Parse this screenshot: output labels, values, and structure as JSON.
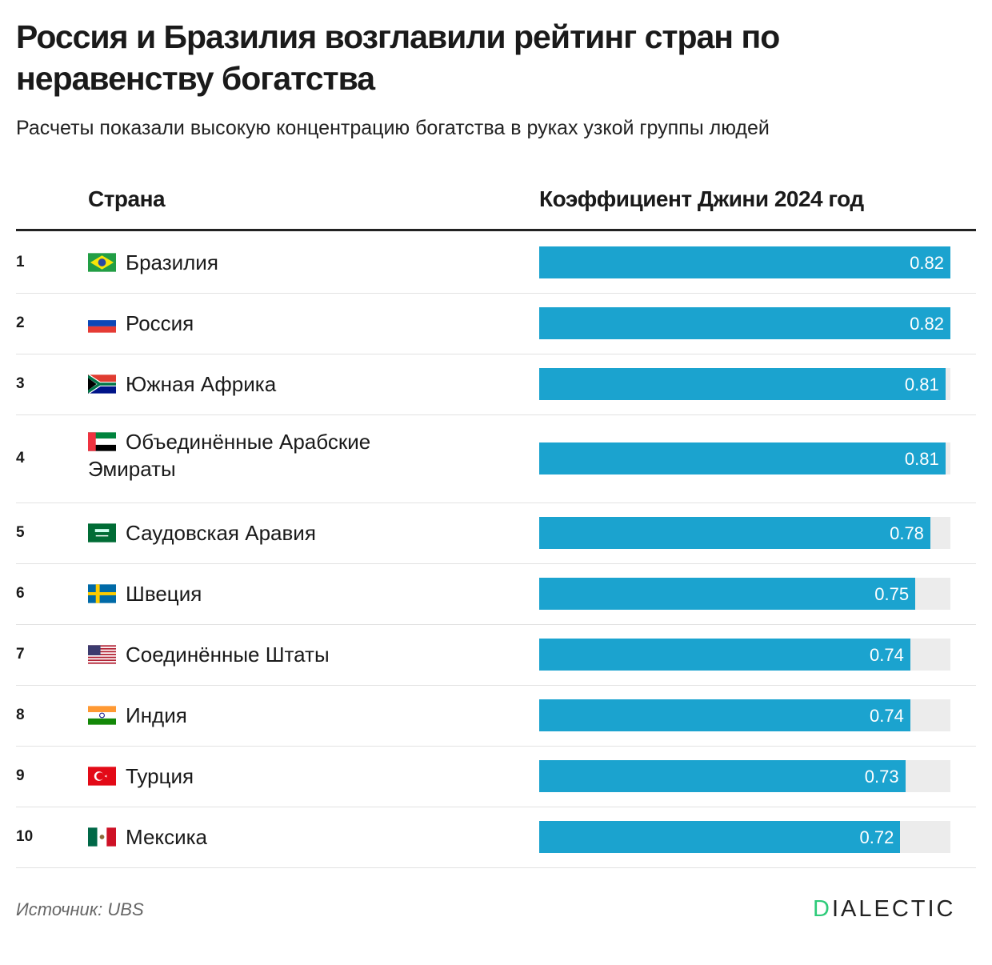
{
  "title": "Россия и Бразилия возглавили рейтинг стран по неравенству богатства",
  "subtitle": "Расчеты показали высокую концентрацию богатства в руках узкой группы людей",
  "source": "Источник: UBS",
  "logo": {
    "first": "D",
    "rest": "IALECTIC"
  },
  "colors": {
    "bar": "#1ba3cf",
    "track": "#ececec",
    "logo_accent": "#2ecb7a"
  },
  "chart_data": {
    "type": "table",
    "columns": [
      "Страна",
      "Коэффициент Джини 2024 год"
    ],
    "xlim": [
      0,
      0.82
    ],
    "rows": [
      {
        "rank": "1",
        "country": "Бразилия",
        "flag": "brazil-flag",
        "value": 0.82,
        "label": "0.82"
      },
      {
        "rank": "2",
        "country": "Россия",
        "flag": "russia-flag",
        "value": 0.82,
        "label": "0.82"
      },
      {
        "rank": "3",
        "country": "Южная Африка",
        "flag": "south-africa-flag",
        "value": 0.81,
        "label": "0.81"
      },
      {
        "rank": "4",
        "country": "Объединённые Арабские Эмираты",
        "flag": "uae-flag",
        "value": 0.81,
        "label": "0.81"
      },
      {
        "rank": "5",
        "country": "Саудовская Аравия",
        "flag": "saudi-arabia-flag",
        "value": 0.78,
        "label": "0.78"
      },
      {
        "rank": "6",
        "country": "Швеция",
        "flag": "sweden-flag",
        "value": 0.75,
        "label": "0.75"
      },
      {
        "rank": "7",
        "country": "Соединённые Штаты",
        "flag": "usa-flag",
        "value": 0.74,
        "label": "0.74"
      },
      {
        "rank": "8",
        "country": "Индия",
        "flag": "india-flag",
        "value": 0.74,
        "label": "0.74"
      },
      {
        "rank": "9",
        "country": "Турция",
        "flag": "turkey-flag",
        "value": 0.73,
        "label": "0.73"
      },
      {
        "rank": "10",
        "country": "Мексика",
        "flag": "mexico-flag",
        "value": 0.72,
        "label": "0.72"
      }
    ]
  }
}
